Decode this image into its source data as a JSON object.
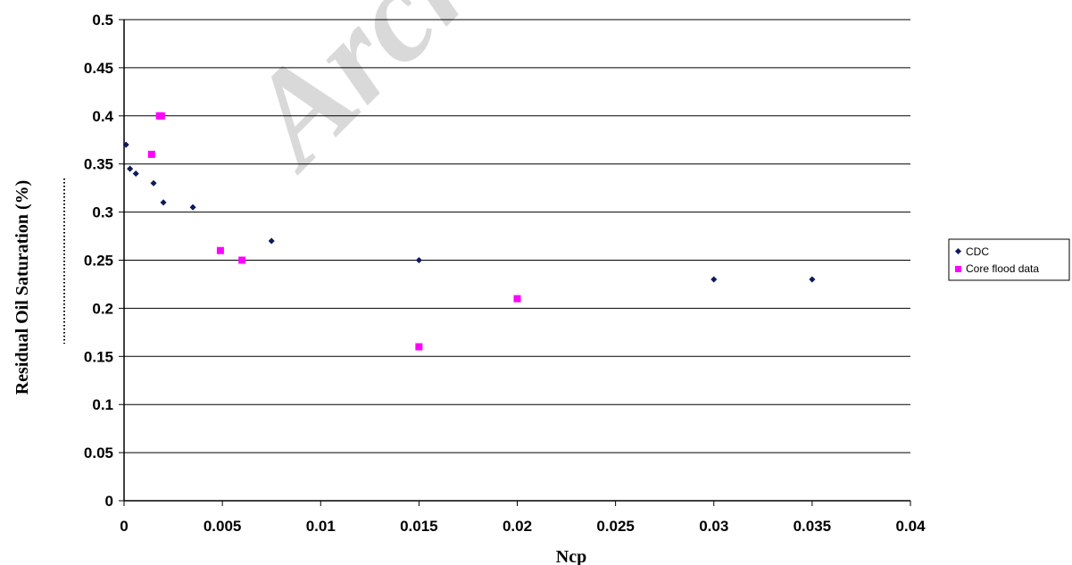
{
  "watermark": "Archi",
  "chart_data": {
    "type": "scatter",
    "title": "",
    "xlabel": "Ncp",
    "ylabel": "Residual Oil Saturation (%)",
    "xlim": [
      0,
      0.04
    ],
    "ylim": [
      0,
      0.5
    ],
    "x_ticks": [
      "0",
      "0.005",
      "0.01",
      "0.015",
      "0.02",
      "0.025",
      "0.03",
      "0.035",
      "0.04"
    ],
    "y_ticks": [
      "0",
      "0.05",
      "0.1",
      "0.15",
      "0.2",
      "0.25",
      "0.3",
      "0.35",
      "0.4",
      "0.45",
      "0.5"
    ],
    "grid": "horizontal",
    "legend_position": "right",
    "series": [
      {
        "name": "CDC",
        "marker": "diamond",
        "color": "#0d1a5c",
        "points": [
          [
            0.0001,
            0.37
          ],
          [
            0.0003,
            0.345
          ],
          [
            0.0006,
            0.34
          ],
          [
            0.0015,
            0.33
          ],
          [
            0.002,
            0.31
          ],
          [
            0.0035,
            0.305
          ],
          [
            0.0075,
            0.27
          ],
          [
            0.015,
            0.25
          ],
          [
            0.03,
            0.23
          ],
          [
            0.035,
            0.23
          ]
        ]
      },
      {
        "name": "Core flood data",
        "marker": "square",
        "color": "#ff00ff",
        "points": [
          [
            0.0014,
            0.36
          ],
          [
            0.0018,
            0.4
          ],
          [
            0.0019,
            0.4
          ],
          [
            0.0049,
            0.26
          ],
          [
            0.006,
            0.25
          ],
          [
            0.015,
            0.16
          ],
          [
            0.02,
            0.21
          ]
        ]
      }
    ]
  }
}
